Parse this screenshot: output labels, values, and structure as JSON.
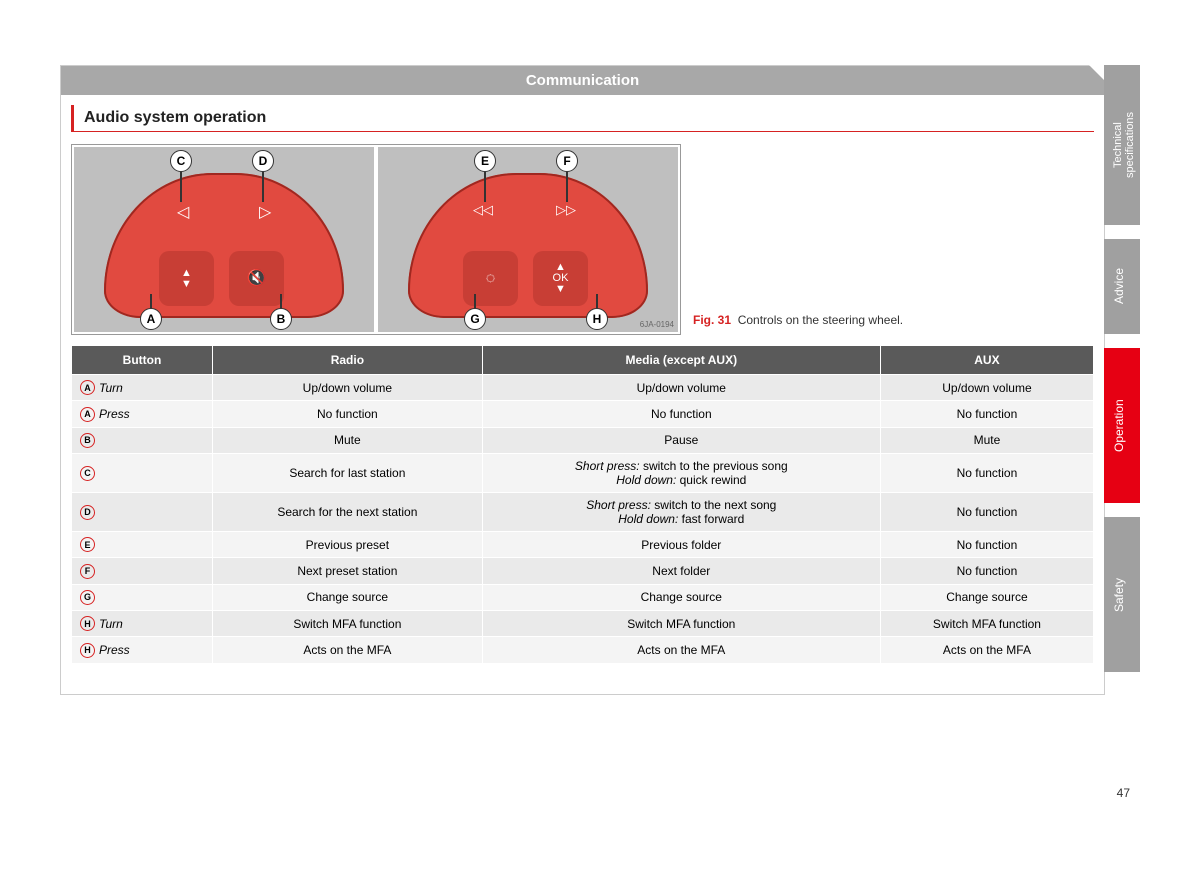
{
  "header": {
    "title": "Communication"
  },
  "section": {
    "title": "Audio system operation"
  },
  "figure": {
    "label": "Fig. 31",
    "caption": "Controls on the steering wheel.",
    "image_ref": "6JA-0194",
    "left_callouts": [
      "C",
      "D",
      "A",
      "B"
    ],
    "right_callouts": [
      "E",
      "F",
      "G",
      "H"
    ]
  },
  "table": {
    "columns": [
      "Button",
      "Radio",
      "Media (except AUX)",
      "AUX"
    ],
    "rows": [
      {
        "letter": "A",
        "action": "Turn",
        "radio": "Up/down volume",
        "media": "Up/down volume",
        "aux": "Up/down volume"
      },
      {
        "letter": "A",
        "action": "Press",
        "radio": "No function",
        "media": "No function",
        "aux": "No function"
      },
      {
        "letter": "B",
        "action": "",
        "radio": "Mute",
        "media": "Pause",
        "aux": "Mute"
      },
      {
        "letter": "C",
        "action": "",
        "radio": "Search for last station",
        "media_html": "<span class='em'>Short press:</span> switch to the previous song<br><span class='em'>Hold down:</span> quick rewind",
        "aux": "No function"
      },
      {
        "letter": "D",
        "action": "",
        "radio": "Search for the next station",
        "media_html": "<span class='em'>Short press:</span> switch to the next song<br><span class='em'>Hold down:</span> fast forward",
        "aux": "No function"
      },
      {
        "letter": "E",
        "action": "",
        "radio": "Previous preset",
        "media": "Previous folder",
        "aux": "No function"
      },
      {
        "letter": "F",
        "action": "",
        "radio": "Next preset station",
        "media": "Next folder",
        "aux": "No function"
      },
      {
        "letter": "G",
        "action": "",
        "radio": "Change source",
        "media": "Change source",
        "aux": "Change source"
      },
      {
        "letter": "H",
        "action": "Turn",
        "radio": "Switch MFA function",
        "media": "Switch MFA function",
        "aux": "Switch MFA function"
      },
      {
        "letter": "H",
        "action": "Press",
        "radio": "Acts on the MFA",
        "media": "Acts on the MFA",
        "aux": "Acts on the MFA"
      }
    ]
  },
  "sidebar": {
    "tabs": [
      "Technical specifications",
      "Advice",
      "Operation",
      "Safety"
    ]
  },
  "page_number": "47"
}
